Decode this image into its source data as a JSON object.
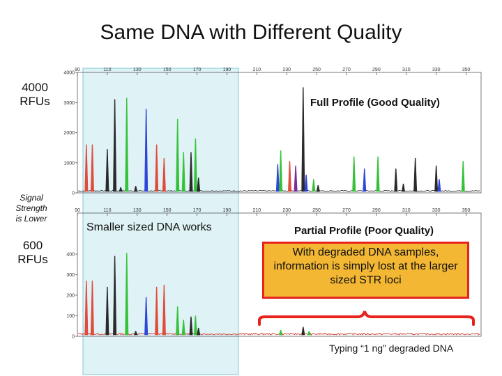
{
  "title": "Same DNA with Different Quality",
  "left_labels": {
    "top_rfu": "4000\nRFUs",
    "signal": "Signal\nStrength\nis Lower",
    "bottom_rfu": "600\nRFUs"
  },
  "annotations": {
    "full_profile": "Full Profile (Good Quality)",
    "smaller_works": "Smaller sized DNA works",
    "partial_profile": "Partial Profile (Poor Quality)",
    "callout": "With degraded DNA samples, information is simply lost at the larger sized STR loci",
    "footer": "Typing “1 ng” degraded DNA"
  },
  "colors": {
    "highlight_fill": "#dff3f6",
    "highlight_border": "#7fcad5",
    "brace": "#e8221c",
    "callout_bg": "#f3b733",
    "callout_border": "#e8221c",
    "baseline_top": "#2d2d2d",
    "baseline_bottom": "#d43a2e"
  },
  "chart_data": [
    {
      "type": "line",
      "name": "good",
      "x_ticks": [
        "90",
        "110",
        "130",
        "150",
        "170",
        "190",
        "210",
        "230",
        "250",
        "270",
        "290",
        "310",
        "330",
        "350"
      ],
      "y_ticks": [
        "4000",
        "3000",
        "2000",
        "1000",
        "0"
      ],
      "ylim": [
        0,
        4000
      ],
      "peaks": [
        {
          "x": 96,
          "y": 1600,
          "color": "#e04b3c"
        },
        {
          "x": 100,
          "y": 1600,
          "color": "#e04b3c"
        },
        {
          "x": 110,
          "y": 1450,
          "color": "#2a2a2a"
        },
        {
          "x": 115,
          "y": 3100,
          "color": "#2a2a2a"
        },
        {
          "x": 119,
          "y": 180,
          "color": "#2a2a2a"
        },
        {
          "x": 123,
          "y": 3150,
          "color": "#35c23a"
        },
        {
          "x": 129,
          "y": 220,
          "color": "#2a2a2a"
        },
        {
          "x": 136,
          "y": 2780,
          "color": "#3046d6"
        },
        {
          "x": 143,
          "y": 1600,
          "color": "#e04b3c"
        },
        {
          "x": 148,
          "y": 1150,
          "color": "#e04b3c"
        },
        {
          "x": 157,
          "y": 2450,
          "color": "#35c23a"
        },
        {
          "x": 161,
          "y": 1350,
          "color": "#35c23a"
        },
        {
          "x": 166,
          "y": 1350,
          "color": "#2a2a2a"
        },
        {
          "x": 169,
          "y": 1800,
          "color": "#35c23a"
        },
        {
          "x": 171,
          "y": 500,
          "color": "#2a2a2a"
        },
        {
          "x": 224,
          "y": 950,
          "color": "#3046d6"
        },
        {
          "x": 226,
          "y": 1400,
          "color": "#35c23a"
        },
        {
          "x": 232,
          "y": 1050,
          "color": "#e04b3c"
        },
        {
          "x": 236,
          "y": 900,
          "color": "#7a2a9a"
        },
        {
          "x": 241,
          "y": 3500,
          "color": "#2a2a2a"
        },
        {
          "x": 243,
          "y": 600,
          "color": "#3046d6"
        },
        {
          "x": 248,
          "y": 450,
          "color": "#35c23a"
        },
        {
          "x": 251,
          "y": 250,
          "color": "#2a2a2a"
        },
        {
          "x": 275,
          "y": 1200,
          "color": "#35c23a"
        },
        {
          "x": 282,
          "y": 800,
          "color": "#3046d6"
        },
        {
          "x": 291,
          "y": 1200,
          "color": "#35c23a"
        },
        {
          "x": 303,
          "y": 800,
          "color": "#2a2a2a"
        },
        {
          "x": 308,
          "y": 300,
          "color": "#2a2a2a"
        },
        {
          "x": 316,
          "y": 1150,
          "color": "#2a2a2a"
        },
        {
          "x": 330,
          "y": 900,
          "color": "#2a2a2a"
        },
        {
          "x": 332,
          "y": 450,
          "color": "#3046d6"
        },
        {
          "x": 348,
          "y": 1050,
          "color": "#35c23a"
        }
      ]
    },
    {
      "type": "line",
      "name": "degraded",
      "x_ticks": [
        "90",
        "110",
        "130",
        "150",
        "170",
        "190",
        "210",
        "230",
        "250",
        "270",
        "290",
        "310",
        "330",
        "350"
      ],
      "y_ticks": [
        "400",
        "300",
        "200",
        "100",
        "0"
      ],
      "ylim": [
        0,
        600
      ],
      "peaks": [
        {
          "x": 96,
          "y": 270,
          "color": "#e04b3c"
        },
        {
          "x": 100,
          "y": 270,
          "color": "#e04b3c"
        },
        {
          "x": 110,
          "y": 240,
          "color": "#2a2a2a"
        },
        {
          "x": 115,
          "y": 390,
          "color": "#2a2a2a"
        },
        {
          "x": 123,
          "y": 405,
          "color": "#35c23a"
        },
        {
          "x": 129,
          "y": 25,
          "color": "#2a2a2a"
        },
        {
          "x": 136,
          "y": 190,
          "color": "#3046d6"
        },
        {
          "x": 143,
          "y": 240,
          "color": "#e04b3c"
        },
        {
          "x": 148,
          "y": 250,
          "color": "#e04b3c"
        },
        {
          "x": 157,
          "y": 145,
          "color": "#35c23a"
        },
        {
          "x": 161,
          "y": 80,
          "color": "#35c23a"
        },
        {
          "x": 166,
          "y": 95,
          "color": "#2a2a2a"
        },
        {
          "x": 169,
          "y": 100,
          "color": "#35c23a"
        },
        {
          "x": 171,
          "y": 40,
          "color": "#2a2a2a"
        },
        {
          "x": 226,
          "y": 30,
          "color": "#35c23a"
        },
        {
          "x": 241,
          "y": 45,
          "color": "#2a2a2a"
        },
        {
          "x": 245,
          "y": 25,
          "color": "#35c23a"
        }
      ]
    }
  ]
}
